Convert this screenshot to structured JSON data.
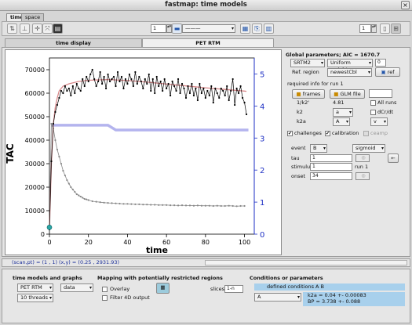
{
  "window": {
    "title": "fastmap: time models",
    "close": "×"
  },
  "top_tabs": [
    "time",
    "space"
  ],
  "toolbar": {
    "icons": [
      "arrow-icon",
      "pin-icon",
      "crosshair-icon",
      "zoom-icon",
      "layers-icon"
    ],
    "frame_spin": "1",
    "line_style": "———",
    "right_spin": "1"
  },
  "sub_tabs": {
    "time_display": "time display",
    "pet_rtm": "PET RTM"
  },
  "chart_data": {
    "type": "line",
    "title": "",
    "xlabel": "time",
    "ylabel": "TAC",
    "xlim": [
      0,
      105
    ],
    "ylim": [
      0,
      75000
    ],
    "y2lim": [
      0,
      5.5
    ],
    "xticks": [
      "0",
      "20",
      "40",
      "60",
      "80",
      "100"
    ],
    "yticks": [
      "0",
      "10000",
      "20000",
      "30000",
      "40000",
      "50000",
      "60000",
      "70000"
    ],
    "y2ticks": [
      "0",
      "1",
      "2",
      "3",
      "4",
      "5"
    ],
    "grid": false,
    "series": [
      {
        "x": [
          0,
          1,
          2,
          3,
          4,
          5,
          6,
          7,
          8,
          9,
          10,
          11,
          12,
          13,
          14,
          15,
          16,
          17,
          18,
          19,
          20,
          21,
          22,
          23,
          24,
          25,
          26,
          27,
          28,
          29,
          30,
          31,
          32,
          33,
          34,
          35,
          36,
          37,
          38,
          39,
          40,
          41,
          42,
          43,
          44,
          45,
          46,
          47,
          48,
          49,
          50,
          51,
          52,
          53,
          54,
          55,
          56,
          57,
          58,
          59,
          60,
          61,
          62,
          63,
          64,
          65,
          66,
          67,
          68,
          69,
          70,
          71,
          72,
          73,
          74,
          75,
          76,
          77,
          78,
          79,
          80,
          81,
          82,
          83,
          84,
          85,
          86,
          87,
          88,
          89,
          90,
          91,
          92,
          93,
          94,
          95,
          96,
          97,
          98,
          99,
          100,
          101
        ],
        "values": [
          2000,
          31000,
          47000,
          52000,
          55000,
          58000,
          61000,
          60000,
          63000,
          61000,
          62000,
          59000,
          63000,
          60000,
          64000,
          62000,
          61000,
          66000,
          63000,
          67000,
          65000,
          68000,
          70000,
          66000,
          63000,
          65000,
          69000,
          64000,
          67000,
          62000,
          68000,
          65000,
          66000,
          67000,
          63000,
          69000,
          65000,
          67000,
          62000,
          66000,
          64000,
          68000,
          66000,
          63000,
          69000,
          64000,
          67000,
          65000,
          62000,
          66000,
          64000,
          68000,
          61000,
          66000,
          60000,
          67000,
          63000,
          65000,
          61000,
          66000,
          62000,
          64000,
          59000,
          65000,
          63000,
          61000,
          66000,
          60000,
          64000,
          62000,
          58000,
          63000,
          60000,
          64000,
          59000,
          62000,
          57000,
          64000,
          60000,
          62000,
          58000,
          61000,
          59000,
          63000,
          56000,
          62000,
          60000,
          58000,
          62000,
          61000,
          59000,
          63000,
          57000,
          61000,
          66000,
          55000,
          62000,
          60000,
          63000,
          58000,
          56000,
          51000
        ]
      },
      {
        "x": [
          0,
          1,
          2,
          3,
          4,
          5,
          7,
          10,
          15,
          20,
          30,
          40,
          50,
          60,
          70,
          80,
          90,
          100,
          101
        ],
        "values": [
          2000,
          30000,
          47000,
          54000,
          58000,
          61000,
          63000,
          64000,
          65000,
          65500,
          65800,
          65400,
          64700,
          63900,
          63100,
          62300,
          61600,
          60900,
          60800
        ]
      },
      {
        "x": [
          0,
          1,
          2,
          3,
          4,
          5,
          6,
          7,
          8,
          9,
          10,
          11,
          12,
          13,
          14,
          15,
          16,
          17,
          18,
          19,
          20,
          22,
          24,
          26,
          28,
          30,
          32,
          34,
          36,
          38,
          40,
          42,
          44,
          46,
          48,
          50,
          52,
          54,
          56,
          58,
          60,
          62,
          64,
          66,
          68,
          70,
          72,
          74,
          76,
          78,
          80,
          82,
          84,
          86,
          88,
          90,
          92,
          94,
          96,
          98,
          100
        ],
        "values": [
          3000,
          47000,
          45000,
          40000,
          36000,
          33000,
          30000,
          27000,
          25000,
          23000,
          21500,
          20000,
          19000,
          18000,
          17000,
          16500,
          16000,
          15500,
          15000,
          14800,
          14500,
          14000,
          13800,
          13600,
          13400,
          13300,
          13200,
          13100,
          13000,
          12900,
          12900,
          12800,
          12700,
          12700,
          12600,
          12600,
          12500,
          12500,
          12400,
          12400,
          12400,
          12300,
          12300,
          12200,
          12300,
          12200,
          12200,
          12100,
          12200,
          12100,
          12100,
          12100,
          12000,
          12100,
          12000,
          12000,
          12100,
          12000,
          11900,
          12000,
          12000
        ]
      },
      {
        "x": [
          1,
          30,
          34,
          102
        ],
        "values": [
          3.4,
          3.4,
          3.25,
          3.25
        ]
      }
    ],
    "colors": {
      "tissue": "#000000",
      "fit": "#d8888a",
      "reference": "#888888",
      "parameter": "#b4b4ee",
      "marker": "#2aa7a7",
      "y2axis": "#1d2fc4"
    }
  },
  "right_panel": {
    "global_params": "Global parameters; AIC = 1670.7",
    "model_select": "SRTM2",
    "weights_select": "Uniform weights",
    "weights_value": "0",
    "ref_region_label": "Ref. region",
    "ref_region_select": "newestCbl",
    "ref_button": "ref",
    "required_info": "required info for run 1",
    "frames_button": "frames",
    "glm_button": "GLM file",
    "k2prime_label": "1/k2'",
    "k2prime_value": "4.81",
    "all_runs_label": "All runs",
    "k2_label": "k2",
    "k2_select": "a",
    "dcr_label": "dCr/dt",
    "k2a_label": "k2a",
    "k2a_select1": "A",
    "k2a_select2": "v",
    "challenges_label": "challenges",
    "calibration_label": "calibration",
    "ceamp_label": "ceamp",
    "event_label": "event",
    "event_select": "B",
    "event_type_select": "sigmoid",
    "tau_label": "tau",
    "tau_value": "1",
    "stimulus_label": "stimulus",
    "stimulus_value": "1",
    "run_label": "run 1",
    "onset_label": "onset",
    "onset_value": "34",
    "back_arrow": "←"
  },
  "status": {
    "scan_pt": "(scan,pt) = (1 , 1)",
    "xy": "(x,y) = (0.25 , 2931.93)"
  },
  "bottom": {
    "time_models_title": "time models and graphs",
    "model_select": "PET RTM",
    "data_select": "data",
    "threads_select": "10 threads",
    "mapping_title": "Mapping with potentially restricted regions",
    "overlay_label": "Overlay",
    "filter_label": "Filter 4D output",
    "slices_label": "slices:",
    "slices_value": "1-n",
    "conditions_title": "Conditions or parameters",
    "defined_conditions": "defined conditions A B",
    "cond_select": "A",
    "result1": "k2a = 0.04 +- 0.00083",
    "result2": "BP = 3.738 +- 0.088"
  }
}
